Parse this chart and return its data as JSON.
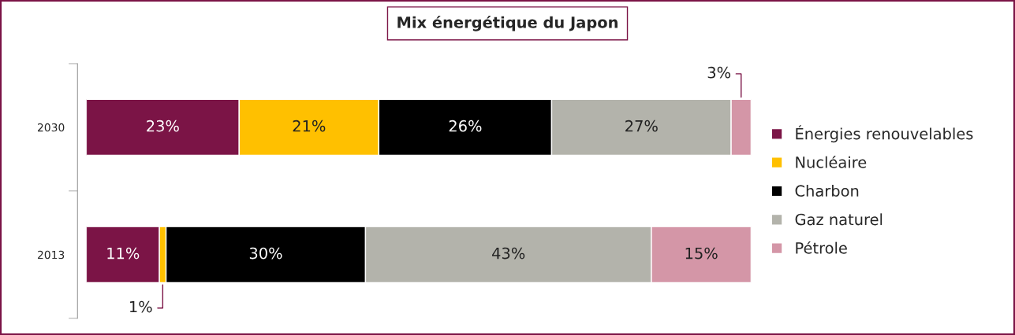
{
  "chart_data": {
    "type": "bar",
    "orientation": "horizontal",
    "stacked": true,
    "title": "Mix énergétique du Japon",
    "categories": [
      "2030",
      "2013"
    ],
    "series": [
      {
        "name": "Énergies renouvelables",
        "color": "#7b1446",
        "values": [
          23,
          11
        ],
        "value_labels": [
          "23%",
          "11%"
        ]
      },
      {
        "name": "Nucléaire",
        "color": "#ffc000",
        "values": [
          21,
          1
        ],
        "value_labels": [
          "21%",
          "1%"
        ]
      },
      {
        "name": "Charbon",
        "color": "#000000",
        "values": [
          26,
          30
        ],
        "value_labels": [
          "26%",
          "30%"
        ]
      },
      {
        "name": "Gaz naturel",
        "color": "#b3b3ab",
        "values": [
          27,
          43
        ],
        "value_labels": [
          "27%",
          "43%"
        ]
      },
      {
        "name": "Pétrole",
        "color": "#d496a7",
        "values": [
          3,
          15
        ],
        "value_labels": [
          "3%",
          "15%"
        ]
      }
    ],
    "tick_labels": "y",
    "legend": "right",
    "grid": false
  }
}
